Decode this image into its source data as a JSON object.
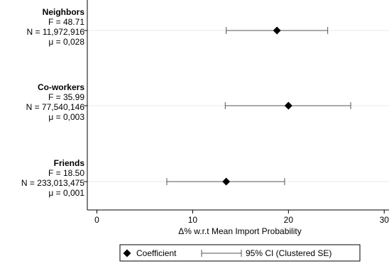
{
  "chart_data": {
    "type": "dot-whisker",
    "xlabel": "Δ% w.r.t Mean Import Probability",
    "xlim": [
      -1,
      30.5
    ],
    "xticks": [
      0,
      10,
      20,
      30
    ],
    "grid": "horizontal",
    "legend_position": "bottom",
    "groups": [
      {
        "name": "Neighbors",
        "stats": [
          "F = 48.71",
          "N = 11,972,916",
          "μ = 0,028"
        ],
        "coef": 18.8,
        "ci": [
          13.5,
          24.1
        ]
      },
      {
        "name": "Co-workers",
        "stats": [
          "F = 35.99",
          "N = 77,540,146",
          "μ = 0,003"
        ],
        "coef": 20.0,
        "ci": [
          13.4,
          26.5
        ]
      },
      {
        "name": "Friends",
        "stats": [
          "F = 18.50",
          "N = 233,013,475",
          "μ = 0,001"
        ],
        "coef": 13.5,
        "ci": [
          7.3,
          19.6
        ]
      }
    ],
    "legend": {
      "coefficient": "Coefficient",
      "ci": "95% CI (Clustered SE)"
    },
    "colors": {
      "marker": "#000000",
      "ci": "#555555",
      "axis": "#000000",
      "grid": "#e8e8e8"
    }
  }
}
